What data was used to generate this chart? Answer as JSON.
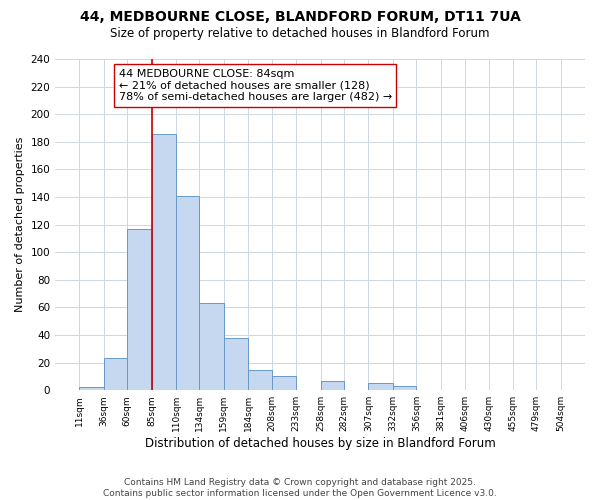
{
  "title_line1": "44, MEDBOURNE CLOSE, BLANDFORD FORUM, DT11 7UA",
  "title_line2": "Size of property relative to detached houses in Blandford Forum",
  "xlabel": "Distribution of detached houses by size in Blandford Forum",
  "ylabel": "Number of detached properties",
  "bar_edges": [
    11,
    36,
    60,
    85,
    110,
    134,
    159,
    184,
    208,
    233,
    258,
    282,
    307,
    332,
    356,
    381,
    406,
    430,
    455,
    479,
    504
  ],
  "bar_heights": [
    2,
    23,
    117,
    186,
    141,
    63,
    38,
    15,
    10,
    0,
    7,
    0,
    5,
    3,
    0,
    0,
    0,
    0,
    0,
    0
  ],
  "bar_color": "#c5d8f0",
  "bar_edgecolor": "#6699cc",
  "bar_linewidth": 0.7,
  "vline_x": 85,
  "vline_color": "#cc0000",
  "vline_linewidth": 1.2,
  "annotation_line1": "44 MEDBOURNE CLOSE: 84sqm",
  "annotation_line2": "← 21% of detached houses are smaller (128)",
  "annotation_line3": "78% of semi-detached houses are larger (482) →",
  "annotation_box_edgecolor": "#cc0000",
  "annotation_box_facecolor": "#ffffff",
  "annotation_fontsize": 8,
  "ylim": [
    0,
    240
  ],
  "yticks": [
    0,
    20,
    40,
    60,
    80,
    100,
    120,
    140,
    160,
    180,
    200,
    220,
    240
  ],
  "xtick_labels": [
    "11sqm",
    "36sqm",
    "60sqm",
    "85sqm",
    "110sqm",
    "134sqm",
    "159sqm",
    "184sqm",
    "208sqm",
    "233sqm",
    "258sqm",
    "282sqm",
    "307sqm",
    "332sqm",
    "356sqm",
    "381sqm",
    "406sqm",
    "430sqm",
    "455sqm",
    "479sqm",
    "504sqm"
  ],
  "grid_color": "#d0d8e0",
  "background_color": "#ffffff",
  "title_fontsize": 10,
  "subtitle_fontsize": 8.5,
  "footer_text": "Contains HM Land Registry data © Crown copyright and database right 2025.\nContains public sector information licensed under the Open Government Licence v3.0.",
  "footer_fontsize": 6.5
}
